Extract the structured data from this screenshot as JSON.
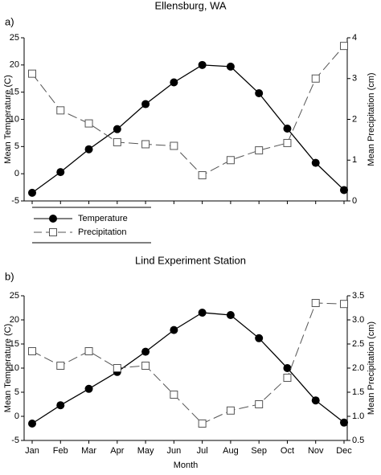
{
  "chart_data": [
    {
      "type": "line",
      "title": "Ellensburg, WA",
      "label": "a)",
      "y_label": "Mean Temperature (C)",
      "y2_label": "Mean Precipitation (cm)",
      "ylim": [
        -5,
        25
      ],
      "yticks": [
        -5,
        0,
        5,
        10,
        15,
        20,
        25
      ],
      "y2lim": [
        0,
        4
      ],
      "y2ticks": [
        0,
        1,
        2,
        3,
        4
      ],
      "series": [
        {
          "name": "Temperature",
          "color": "#000000",
          "values": [
            -3.5,
            0.3,
            4.5,
            8.2,
            12.8,
            16.8,
            20,
            19.7,
            14.8,
            8.3,
            2,
            -3
          ]
        },
        {
          "name": "Precipitation",
          "color": "#555555",
          "axis": "y2",
          "values": [
            3.12,
            2.22,
            1.9,
            1.44,
            1.39,
            1.35,
            0.63,
            1.0,
            1.24,
            1.42,
            3.0,
            3.8
          ]
        }
      ]
    },
    {
      "type": "line",
      "title": "Lind Experiment Station",
      "label": "b)",
      "x_label": "Month",
      "y_label": "Mean Temperature (C)",
      "y2_label": "Mean Precipitation (cm)",
      "categories": [
        "Jan",
        "Feb",
        "Mar",
        "Apr",
        "May",
        "Jun",
        "Jul",
        "Aug",
        "Sep",
        "Oct",
        "Nov",
        "Dec"
      ],
      "ylim": [
        -5,
        25
      ],
      "yticks": [
        -5,
        0,
        5,
        10,
        15,
        20,
        25
      ],
      "y2lim": [
        0.5,
        3.5
      ],
      "y2ticks": [
        0.5,
        {
          "value": 1,
          "label": "1.0"
        },
        1.5,
        {
          "value": 2,
          "label": "2.0"
        },
        2.5,
        {
          "value": 3,
          "label": "3.0"
        },
        3.5
      ],
      "series": [
        {
          "color": "#000000",
          "values": [
            -1.5,
            2.3,
            5.7,
            9.2,
            13.4,
            17.9,
            21.5,
            21,
            16.2,
            10,
            3.3,
            -1.3
          ]
        },
        {
          "color": "#555555",
          "axis": "y2",
          "values": [
            2.35,
            2.05,
            2.35,
            2.0,
            2.05,
            1.45,
            0.85,
            1.12,
            1.25,
            1.8,
            3.35,
            3.33
          ]
        }
      ]
    }
  ]
}
